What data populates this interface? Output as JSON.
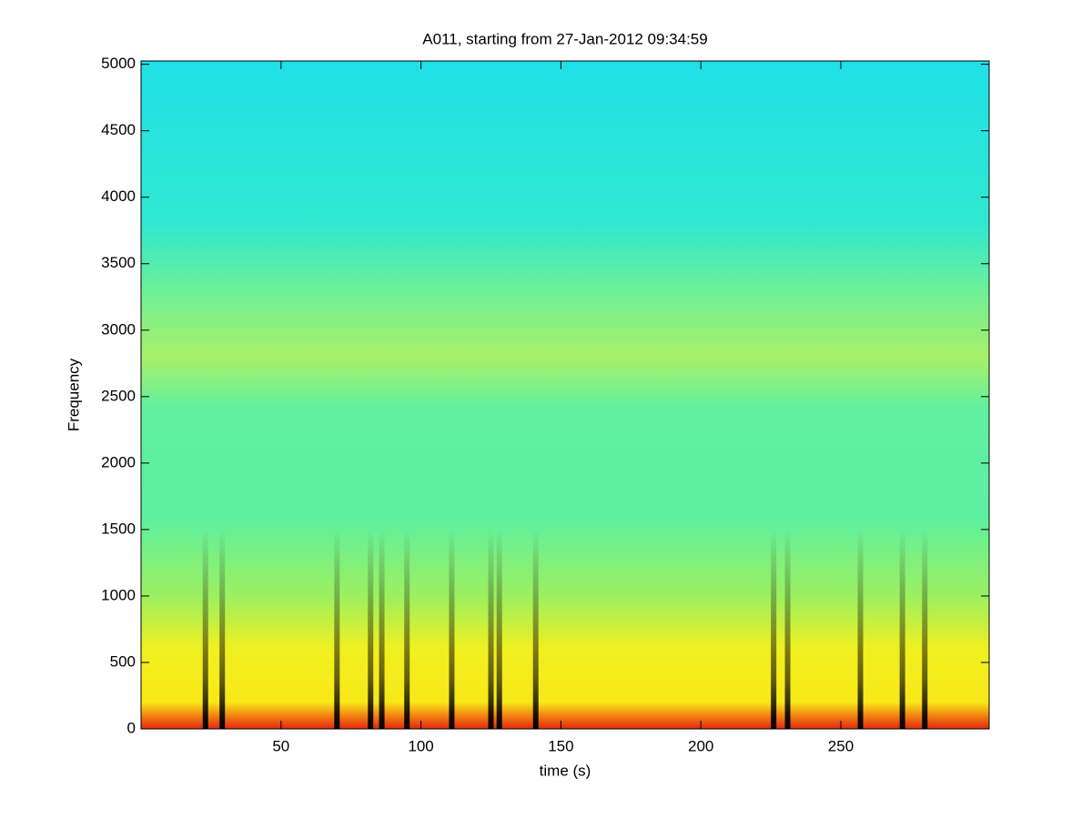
{
  "chart_data": {
    "type": "spectrogram",
    "title": "A011, starting from 27-Jan-2012 09:34:59",
    "xlabel": "time (s)",
    "ylabel": "Frequency",
    "xlim": [
      0,
      303
    ],
    "ylim": [
      0,
      5025
    ],
    "xticks": [
      50,
      100,
      150,
      200,
      250
    ],
    "yticks": [
      0,
      500,
      1000,
      1500,
      2000,
      2500,
      3000,
      3500,
      4000,
      4500,
      5000
    ],
    "colormap": [
      {
        "value": 0,
        "color": "#e02810"
      },
      {
        "value": 80,
        "color": "#f07010"
      },
      {
        "value": 200,
        "color": "#f8e818"
      },
      {
        "value": 600,
        "color": "#f0f020"
      },
      {
        "value": 1000,
        "color": "#9cf060"
      },
      {
        "value": 1600,
        "color": "#5cf0a0"
      },
      {
        "value": 2400,
        "color": "#60f0a0"
      },
      {
        "value": 2800,
        "color": "#a8f068"
      },
      {
        "value": 3300,
        "color": "#6cf098"
      },
      {
        "value": 3800,
        "color": "#30e8d0"
      },
      {
        "value": 5025,
        "color": "#20e0e8"
      }
    ],
    "bursts": [
      23,
      29,
      70,
      82,
      86,
      95,
      111,
      125,
      128,
      141,
      226,
      231,
      257,
      272,
      280
    ],
    "burst_color": "#d81808"
  }
}
